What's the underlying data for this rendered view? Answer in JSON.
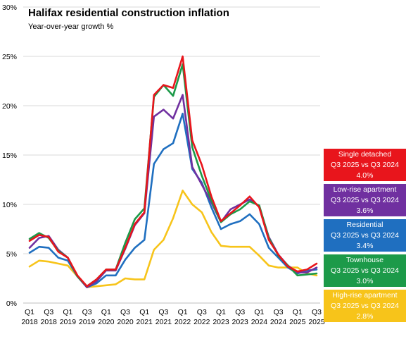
{
  "colors": {
    "single_detached": "#e8151c",
    "low_rise_apartment": "#7030a0",
    "residential": "#1f6fc0",
    "townhouse": "#1c9a49",
    "high_rise_apartment": "#f7c41a",
    "grid": "#d9d9d9",
    "axis_text": "#000000"
  },
  "chart_data": {
    "type": "line",
    "title": "Halifax residential construction inflation",
    "subtitle": "Year-over-year  growth %",
    "x": [
      "Q1 2018",
      "Q2 2018",
      "Q3 2018",
      "Q4 2018",
      "Q1 2019",
      "Q2 2019",
      "Q3 2019",
      "Q4 2019",
      "Q1 2020",
      "Q2 2020",
      "Q3 2020",
      "Q4 2020",
      "Q1 2021",
      "Q2 2021",
      "Q3 2021",
      "Q4 2021",
      "Q1 2022",
      "Q2 2022",
      "Q3 2022",
      "Q4 2022",
      "Q1 2023",
      "Q2 2023",
      "Q3 2023",
      "Q4 2023",
      "Q1 2024",
      "Q2 2024",
      "Q3 2024",
      "Q4 2024",
      "Q1 2025",
      "Q2 2025",
      "Q3 2025"
    ],
    "x_tick_labels": [
      {
        "quarter": "Q1",
        "year": "2018"
      },
      {
        "quarter": "Q3",
        "year": "2018"
      },
      {
        "quarter": "Q1",
        "year": "2019"
      },
      {
        "quarter": "Q3",
        "year": "2019"
      },
      {
        "quarter": "Q1",
        "year": "2020"
      },
      {
        "quarter": "Q3",
        "year": "2020"
      },
      {
        "quarter": "Q1",
        "year": "2021"
      },
      {
        "quarter": "Q3",
        "year": "2021"
      },
      {
        "quarter": "Q1",
        "year": "2022"
      },
      {
        "quarter": "Q3",
        "year": "2022"
      },
      {
        "quarter": "Q1",
        "year": "2023"
      },
      {
        "quarter": "Q3",
        "year": "2023"
      },
      {
        "quarter": "Q1",
        "year": "2024"
      },
      {
        "quarter": "Q3",
        "year": "2024"
      },
      {
        "quarter": "Q1",
        "year": "2025"
      },
      {
        "quarter": "Q3",
        "year": "2025"
      }
    ],
    "y_tick_labels": [
      "0%",
      "5%",
      "10%",
      "15%",
      "20%",
      "25%",
      "30%"
    ],
    "ylim": [
      0,
      30
    ],
    "grid": true,
    "legend_placement": "right",
    "series": [
      {
        "key": "high_rise_apartment",
        "color": "#f7c41a",
        "values": [
          3.7,
          4.3,
          4.2,
          4.0,
          3.8,
          2.7,
          1.6,
          1.7,
          1.8,
          1.9,
          2.5,
          2.4,
          2.4,
          5.4,
          6.4,
          8.6,
          11.4,
          10.0,
          9.2,
          7.2,
          5.8,
          5.7,
          5.7,
          5.7,
          4.8,
          3.8,
          3.6,
          3.6,
          3.6,
          3.0,
          2.8
        ]
      },
      {
        "key": "residential",
        "color": "#1f6fc0",
        "values": [
          5.1,
          5.7,
          5.6,
          4.6,
          4.3,
          2.7,
          1.6,
          2.0,
          2.8,
          2.8,
          4.4,
          5.6,
          6.4,
          14.1,
          15.6,
          16.2,
          19.2,
          13.6,
          12.2,
          9.7,
          7.5,
          8.0,
          8.3,
          9.0,
          8.0,
          5.6,
          4.6,
          3.6,
          3.0,
          3.3,
          3.4
        ]
      },
      {
        "key": "low_rise_apartment",
        "color": "#7030a0",
        "values": [
          5.6,
          6.6,
          6.8,
          5.4,
          4.6,
          2.7,
          1.6,
          2.2,
          3.3,
          3.3,
          5.5,
          7.9,
          9.1,
          18.9,
          19.6,
          18.7,
          21.1,
          13.8,
          12.0,
          10.2,
          8.2,
          9.5,
          10.0,
          10.5,
          9.8,
          6.7,
          4.9,
          3.8,
          3.1,
          3.1,
          3.6
        ]
      },
      {
        "key": "townhouse",
        "color": "#1c9a49",
        "values": [
          6.5,
          7.1,
          6.6,
          5.3,
          4.6,
          2.7,
          1.7,
          2.4,
          3.4,
          3.4,
          6.1,
          8.5,
          9.6,
          20.9,
          22.1,
          21.0,
          24.2,
          15.8,
          12.9,
          10.4,
          8.2,
          9.0,
          9.5,
          10.3,
          9.9,
          6.6,
          4.8,
          3.8,
          2.8,
          2.9,
          3.0
        ]
      },
      {
        "key": "single_detached",
        "color": "#e8151c",
        "values": [
          6.3,
          6.9,
          6.7,
          5.2,
          4.6,
          2.8,
          1.7,
          2.4,
          3.4,
          3.4,
          5.6,
          8.0,
          9.2,
          21.1,
          22.1,
          21.8,
          25.0,
          16.5,
          14.0,
          10.8,
          8.3,
          9.1,
          9.9,
          10.8,
          9.7,
          6.4,
          4.9,
          3.7,
          3.2,
          3.4,
          4.0
        ]
      }
    ]
  },
  "legend": [
    {
      "key": "single_detached",
      "bg": "#e8151c",
      "name": "Single detached",
      "period": "Q3 2025 vs Q3 2024",
      "value": "4.0%"
    },
    {
      "key": "low_rise_apartment",
      "bg": "#7030a0",
      "name": "Low-rise apartment",
      "period": "Q3 2025 vs Q3 2024",
      "value": "3.6%"
    },
    {
      "key": "residential",
      "bg": "#1f6fc0",
      "name": "Residential",
      "period": "Q3 2025 vs Q3 2024",
      "value": "3.4%"
    },
    {
      "key": "townhouse",
      "bg": "#1c9a49",
      "name": "Townhouse",
      "period": "Q3 2025 vs Q3 2024",
      "value": "3.0%"
    },
    {
      "key": "high_rise_apartment",
      "bg": "#f7c41a",
      "name": "High-rise apartment",
      "period": "Q3 2025 vs Q3 2024",
      "value": "2.8%"
    }
  ]
}
